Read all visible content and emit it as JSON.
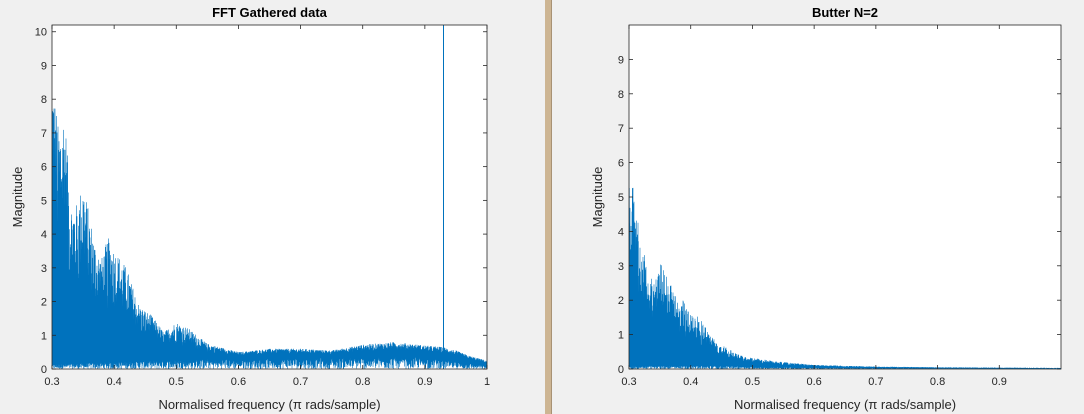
{
  "chart_data": [
    {
      "type": "line",
      "title": "FFT Gathered data",
      "xlabel": "Normalised frequency (π rads/sample)",
      "ylabel": "Magnitude",
      "xlim": [
        0.3,
        1.0
      ],
      "ylim": [
        0,
        10.2
      ],
      "xticks": [
        "0.3",
        "0.4",
        "0.5",
        "0.6",
        "0.7",
        "0.8",
        "0.9",
        "1"
      ],
      "yticks": [
        "0",
        "1",
        "2",
        "3",
        "4",
        "5",
        "6",
        "7",
        "8",
        "9",
        "10"
      ],
      "grid": false,
      "series": [
        {
          "color": "#0072bd",
          "style": "dense-noise",
          "envelope": [
            [
              0.3,
              9.0
            ],
            [
              0.31,
              7.2
            ],
            [
              0.32,
              7.8
            ],
            [
              0.33,
              5.0
            ],
            [
              0.34,
              4.9
            ],
            [
              0.35,
              5.6
            ],
            [
              0.36,
              4.6
            ],
            [
              0.37,
              3.7
            ],
            [
              0.38,
              3.3
            ],
            [
              0.39,
              3.9
            ],
            [
              0.4,
              3.6
            ],
            [
              0.42,
              3.0
            ],
            [
              0.44,
              1.9
            ],
            [
              0.46,
              1.6
            ],
            [
              0.48,
              1.1
            ],
            [
              0.5,
              1.4
            ],
            [
              0.52,
              1.2
            ],
            [
              0.55,
              0.75
            ],
            [
              0.6,
              0.5
            ],
            [
              0.65,
              0.6
            ],
            [
              0.7,
              0.6
            ],
            [
              0.75,
              0.55
            ],
            [
              0.8,
              0.72
            ],
            [
              0.85,
              0.8
            ],
            [
              0.9,
              0.7
            ],
            [
              0.93,
              0.65
            ],
            [
              0.95,
              0.55
            ],
            [
              0.97,
              0.4
            ],
            [
              1.0,
              0.25
            ]
          ],
          "floor": [
            [
              0.3,
              0.15
            ],
            [
              0.5,
              0.3
            ],
            [
              0.6,
              0.35
            ],
            [
              0.9,
              0.4
            ],
            [
              1.0,
              0.1
            ]
          ],
          "spike": {
            "x": 0.93,
            "y": 10.2
          }
        }
      ]
    },
    {
      "type": "line",
      "title": "Butter N=2",
      "xlabel": "Normalised frequency (π rads/sample)",
      "ylabel": "Magnitude",
      "xlim": [
        0.3,
        1.0
      ],
      "ylim": [
        0,
        10.0
      ],
      "xticks": [
        "0.3",
        "0.4",
        "0.5",
        "0.6",
        "0.7",
        "0.8",
        "0.9"
      ],
      "yticks": [
        "0",
        "1",
        "2",
        "3",
        "4",
        "5",
        "6",
        "7",
        "8",
        "9"
      ],
      "grid": false,
      "series": [
        {
          "color": "#0072bd",
          "style": "dense-noise",
          "envelope": [
            [
              0.3,
              6.2
            ],
            [
              0.31,
              4.8
            ],
            [
              0.32,
              3.7
            ],
            [
              0.33,
              3.0
            ],
            [
              0.34,
              2.6
            ],
            [
              0.35,
              3.1
            ],
            [
              0.36,
              3.0
            ],
            [
              0.37,
              2.3
            ],
            [
              0.38,
              2.0
            ],
            [
              0.39,
              2.0
            ],
            [
              0.4,
              1.7
            ],
            [
              0.42,
              1.4
            ],
            [
              0.44,
              0.8
            ],
            [
              0.46,
              0.6
            ],
            [
              0.48,
              0.4
            ],
            [
              0.5,
              0.32
            ],
            [
              0.55,
              0.2
            ],
            [
              0.6,
              0.12
            ],
            [
              0.7,
              0.07
            ],
            [
              0.8,
              0.05
            ],
            [
              0.9,
              0.04
            ],
            [
              1.0,
              0.03
            ]
          ],
          "floor": [
            [
              0.3,
              0.1
            ],
            [
              0.45,
              0.1
            ],
            [
              0.55,
              0.05
            ],
            [
              1.0,
              0.0
            ]
          ]
        }
      ]
    }
  ]
}
